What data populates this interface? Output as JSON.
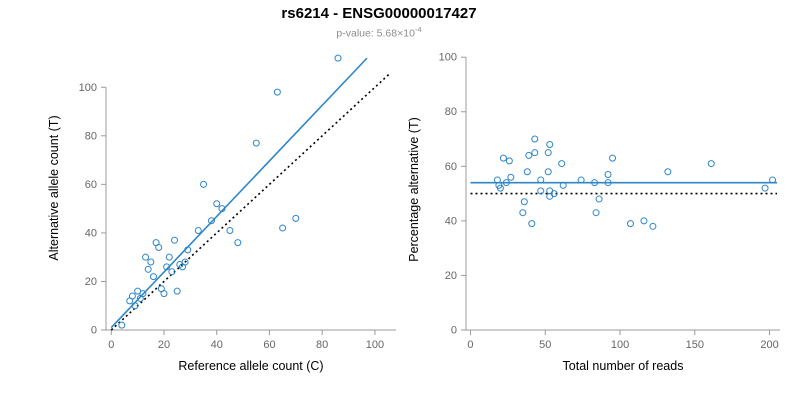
{
  "header": {
    "title": "rs6214 - ENSG00000017427",
    "subtitle_prefix": "p-value: 5.68",
    "subtitle_times": "×10",
    "subtitle_exp": "-4"
  },
  "colors": {
    "accent": "#2E86C8",
    "identity": "#000000",
    "axis": "#9b9b9b",
    "tick_text": "#666666",
    "axis_title": "#000000"
  },
  "chart_data": [
    {
      "type": "scatter",
      "xlabel": "Reference allele count (C)",
      "ylabel": "Alternative allele count (T)",
      "xlim": [
        -2,
        108
      ],
      "ylim": [
        0,
        117
      ],
      "xticks": [
        0,
        20,
        40,
        60,
        80,
        100
      ],
      "yticks": [
        0,
        20,
        40,
        60,
        80,
        100
      ],
      "grid": false,
      "points": [
        [
          4,
          2
        ],
        [
          7,
          12
        ],
        [
          8,
          14
        ],
        [
          9,
          10
        ],
        [
          10,
          16
        ],
        [
          11,
          13
        ],
        [
          12,
          15
        ],
        [
          13,
          30
        ],
        [
          14,
          25
        ],
        [
          15,
          28
        ],
        [
          16,
          22
        ],
        [
          17,
          36
        ],
        [
          18,
          34
        ],
        [
          19,
          17
        ],
        [
          20,
          15
        ],
        [
          21,
          26
        ],
        [
          22,
          30
        ],
        [
          23,
          24
        ],
        [
          24,
          37
        ],
        [
          25,
          16
        ],
        [
          26,
          27
        ],
        [
          27,
          26
        ],
        [
          28,
          28
        ],
        [
          29,
          33
        ],
        [
          33,
          41
        ],
        [
          35,
          60
        ],
        [
          38,
          45
        ],
        [
          40,
          52
        ],
        [
          42,
          50
        ],
        [
          45,
          41
        ],
        [
          48,
          36
        ],
        [
          55,
          77
        ],
        [
          63,
          98
        ],
        [
          65,
          42
        ],
        [
          70,
          46
        ],
        [
          86,
          112
        ]
      ],
      "lines": [
        {
          "name": "fit",
          "style": "solid",
          "points": [
            [
              0,
              1
            ],
            [
              97,
              112
            ]
          ]
        },
        {
          "name": "identity",
          "style": "dotted",
          "points": [
            [
              0,
              0
            ],
            [
              106,
              106
            ]
          ]
        }
      ]
    },
    {
      "type": "scatter",
      "xlabel": "Total number of reads",
      "ylabel": "Percentage alternative (T)",
      "xlim": [
        -3,
        207
      ],
      "ylim": [
        0,
        103
      ],
      "xticks": [
        0,
        50,
        100,
        150,
        200
      ],
      "yticks": [
        0,
        20,
        40,
        60,
        80,
        100
      ],
      "grid": false,
      "points": [
        [
          18,
          55
        ],
        [
          20,
          52
        ],
        [
          22,
          63
        ],
        [
          19,
          53
        ],
        [
          26,
          62
        ],
        [
          24,
          54
        ],
        [
          27,
          56
        ],
        [
          43,
          70
        ],
        [
          39,
          64
        ],
        [
          43,
          65
        ],
        [
          38,
          58
        ],
        [
          53,
          68
        ],
        [
          52,
          65
        ],
        [
          36,
          47
        ],
        [
          35,
          43
        ],
        [
          47,
          55
        ],
        [
          52,
          58
        ],
        [
          47,
          51
        ],
        [
          61,
          61
        ],
        [
          41,
          39
        ],
        [
          53,
          51
        ],
        [
          53,
          49
        ],
        [
          56,
          50
        ],
        [
          62,
          53
        ],
        [
          74,
          55
        ],
        [
          95,
          63
        ],
        [
          83,
          54
        ],
        [
          92,
          57
        ],
        [
          92,
          54
        ],
        [
          86,
          48
        ],
        [
          84,
          43
        ],
        [
          132,
          58
        ],
        [
          161,
          61
        ],
        [
          107,
          39
        ],
        [
          116,
          40
        ],
        [
          122,
          38
        ],
        [
          197,
          52
        ],
        [
          202,
          55
        ]
      ],
      "lines": [
        {
          "name": "fit",
          "style": "solid",
          "points": [
            [
              0,
              54
            ],
            [
              205,
              54
            ]
          ]
        },
        {
          "name": "identity",
          "style": "dotted",
          "points": [
            [
              0,
              50
            ],
            [
              205,
              50
            ]
          ]
        }
      ]
    }
  ]
}
